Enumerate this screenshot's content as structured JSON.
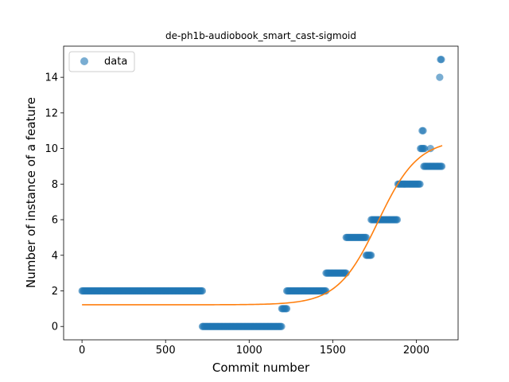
{
  "chart_data": {
    "type": "scatter",
    "title": "de-ph1b-audiobook_smart_cast-sigmoid",
    "xlabel": "Commit number",
    "ylabel": "Number of instance of a feature",
    "xlim": [
      -110,
      2250
    ],
    "ylim": [
      -0.75,
      15.75
    ],
    "xticks": [
      0,
      500,
      1000,
      1500,
      2000
    ],
    "yticks": [
      0,
      2,
      4,
      6,
      8,
      10,
      12,
      14
    ],
    "grid": false,
    "legend": {
      "placement": "top-left",
      "entries": [
        "data"
      ]
    },
    "colors": {
      "data": "#1f77b4",
      "fit": "#ff7f0e"
    },
    "series": [
      {
        "name": "data",
        "kind": "scatter",
        "segments": [
          {
            "x_start": 0,
            "x_end": 720,
            "step": 6,
            "y": 2
          },
          {
            "x_start": 720,
            "x_end": 1195,
            "step": 6,
            "y": 0
          },
          {
            "x_start": 1195,
            "x_end": 1225,
            "step": 6,
            "y": 1
          },
          {
            "x_start": 1225,
            "x_end": 1460,
            "step": 6,
            "y": 2
          },
          {
            "x_start": 1460,
            "x_end": 1580,
            "step": 6,
            "y": 3
          },
          {
            "x_start": 1580,
            "x_end": 1700,
            "step": 6,
            "y": 5
          },
          {
            "x_start": 1700,
            "x_end": 1730,
            "step": 6,
            "y": 4
          },
          {
            "x_start": 1730,
            "x_end": 1890,
            "step": 6,
            "y": 6
          },
          {
            "x_start": 1890,
            "x_end": 2025,
            "step": 6,
            "y": 8
          },
          {
            "x_start": 2025,
            "x_end": 2050,
            "step": 6,
            "y": 10
          },
          {
            "x_start": 2035,
            "x_end": 2045,
            "step": 6,
            "y": 11
          },
          {
            "x_start": 2045,
            "x_end": 2155,
            "step": 6,
            "y": 9
          }
        ],
        "points": [
          [
            2085,
            10
          ],
          [
            2140,
            14
          ],
          [
            2145,
            15
          ],
          [
            2150,
            15
          ]
        ]
      },
      {
        "kind": "line",
        "model": "sigmoid",
        "params": {
          "lower": 1.22,
          "amplitude": 9.3,
          "midpoint": 1770,
          "scale": 120
        },
        "x_range": [
          0,
          2155
        ]
      }
    ]
  }
}
